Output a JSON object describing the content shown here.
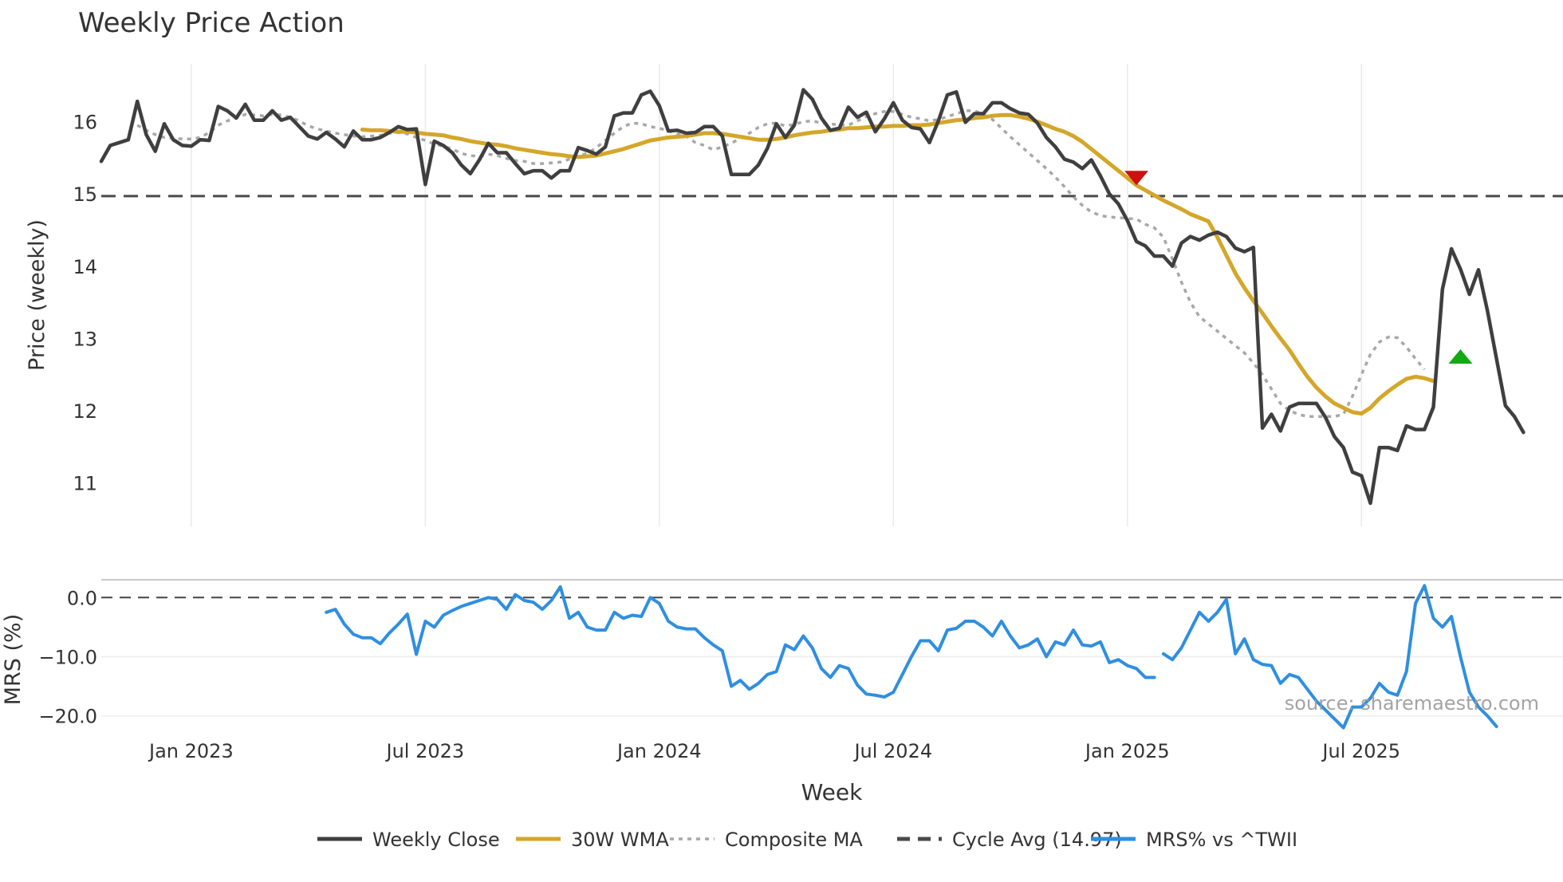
{
  "chart_data": [
    {
      "panel": "price",
      "type": "line",
      "title": "Weekly Price Action",
      "xlabel": "",
      "ylabel": "Price (weekly)",
      "ylim": [
        10.4,
        16.8
      ],
      "yticks": [
        11,
        12,
        13,
        14,
        15,
        16
      ],
      "x_start": "2022-10-24",
      "x_step_days": 7,
      "grid": "vertical",
      "series": [
        {
          "name": "Weekly Close",
          "color": "#3f3f3f",
          "style": "solid",
          "start_index": 0,
          "values": [
            15.45,
            15.67,
            15.71,
            15.75,
            16.28,
            15.82,
            15.59,
            15.97,
            15.75,
            15.67,
            15.66,
            15.75,
            15.74,
            16.21,
            16.15,
            16.05,
            16.24,
            16.02,
            16.02,
            16.15,
            16.02,
            16.06,
            15.93,
            15.8,
            15.76,
            15.85,
            15.76,
            15.65,
            15.87,
            15.75,
            15.75,
            15.78,
            15.85,
            15.93,
            15.89,
            15.9,
            15.13,
            15.73,
            15.67,
            15.57,
            15.4,
            15.28,
            15.47,
            15.7,
            15.57,
            15.57,
            15.42,
            15.28,
            15.32,
            15.32,
            15.22,
            15.32,
            15.32,
            15.64,
            15.6,
            15.55,
            15.65,
            16.08,
            16.12,
            16.12,
            16.37,
            16.42,
            16.22,
            15.87,
            15.88,
            15.84,
            15.85,
            15.93,
            15.93,
            15.8,
            15.27,
            15.27,
            15.27,
            15.4,
            15.63,
            15.97,
            15.78,
            15.95,
            16.44,
            16.31,
            16.05,
            15.88,
            15.91,
            16.2,
            16.06,
            16.13,
            15.86,
            16.04,
            16.26,
            16.02,
            15.92,
            15.9,
            15.71,
            16.01,
            16.37,
            16.41,
            15.99,
            16.11,
            16.11,
            16.26,
            16.26,
            16.18,
            16.12,
            16.1,
            15.98,
            15.78,
            15.65,
            15.48,
            15.44,
            15.35,
            15.47,
            15.25,
            15.0,
            14.86,
            14.63,
            14.34,
            14.28,
            14.14,
            14.14,
            14.0,
            14.32,
            14.41,
            14.36,
            14.43,
            14.47,
            14.41,
            14.25,
            14.2,
            14.26,
            11.76,
            11.95,
            11.72,
            12.05,
            12.1,
            12.1,
            12.1,
            11.91,
            11.64,
            11.49,
            11.15,
            11.1,
            10.72,
            11.49,
            11.49,
            11.45,
            11.79,
            11.74,
            11.74,
            12.05,
            13.68,
            14.24,
            13.96,
            13.61,
            13.95,
            13.38,
            12.72,
            12.07,
            11.92,
            11.7
          ]
        },
        {
          "name": "30W WMA",
          "color": "#d4a62a",
          "style": "solid",
          "start_index": 29,
          "values": [
            15.89,
            15.88,
            15.88,
            15.87,
            15.86,
            15.86,
            15.85,
            15.83,
            15.82,
            15.81,
            15.78,
            15.76,
            15.73,
            15.71,
            15.69,
            15.68,
            15.66,
            15.63,
            15.61,
            15.59,
            15.57,
            15.55,
            15.54,
            15.52,
            15.51,
            15.52,
            15.53,
            15.56,
            15.59,
            15.62,
            15.66,
            15.7,
            15.74,
            15.76,
            15.78,
            15.79,
            15.8,
            15.82,
            15.84,
            15.84,
            15.83,
            15.81,
            15.79,
            15.77,
            15.75,
            15.75,
            15.76,
            15.78,
            15.81,
            15.83,
            15.85,
            15.86,
            15.88,
            15.89,
            15.91,
            15.91,
            15.92,
            15.93,
            15.93,
            15.94,
            15.94,
            15.95,
            15.95,
            15.96,
            15.98,
            16.0,
            16.02,
            16.03,
            16.05,
            16.06,
            16.08,
            16.09,
            16.09,
            16.07,
            16.04,
            16.0,
            15.95,
            15.9,
            15.86,
            15.8,
            15.72,
            15.62,
            15.52,
            15.42,
            15.32,
            15.22,
            15.12,
            15.05,
            14.98,
            14.91,
            14.85,
            14.79,
            14.72,
            14.67,
            14.62,
            14.4,
            14.15,
            13.9,
            13.7,
            13.52,
            13.35,
            13.17,
            13.0,
            12.84,
            12.65,
            12.47,
            12.32,
            12.2,
            12.1,
            12.04,
            11.98,
            11.96,
            12.04,
            12.17,
            12.27,
            12.36,
            12.44,
            12.47,
            12.45,
            12.41
          ]
        },
        {
          "name": "Composite MA",
          "color": "#a8a8a8",
          "style": "dotted",
          "start_index": 4,
          "values": [
            15.95,
            15.88,
            15.82,
            15.78,
            15.77,
            15.76,
            15.76,
            15.78,
            15.85,
            15.95,
            16.01,
            16.05,
            16.1,
            16.09,
            16.08,
            16.1,
            16.09,
            16.06,
            16.01,
            15.94,
            15.9,
            15.87,
            15.84,
            15.82,
            15.8,
            15.79,
            15.8,
            15.81,
            15.84,
            15.85,
            15.83,
            15.78,
            15.74,
            15.69,
            15.66,
            15.62,
            15.56,
            15.53,
            15.52,
            15.55,
            15.53,
            15.49,
            15.46,
            15.45,
            15.42,
            15.42,
            15.43,
            15.44,
            15.48,
            15.53,
            15.56,
            15.64,
            15.74,
            15.84,
            15.93,
            15.98,
            15.97,
            15.93,
            15.91,
            15.87,
            15.83,
            15.8,
            15.71,
            15.67,
            15.61,
            15.65,
            15.7,
            15.77,
            15.84,
            15.92,
            15.97,
            15.98,
            15.94,
            15.96,
            16.0,
            16.01,
            15.98,
            15.97,
            15.95,
            15.95,
            16.01,
            16.07,
            16.11,
            16.14,
            16.14,
            16.1,
            16.06,
            16.04,
            16.01,
            16.03,
            16.07,
            16.11,
            16.15,
            16.15,
            16.1,
            16.03,
            15.91,
            15.79,
            15.68,
            15.57,
            15.46,
            15.35,
            15.23,
            15.1,
            14.96,
            14.84,
            14.75,
            14.7,
            14.68,
            14.67,
            14.66,
            14.65,
            14.58,
            14.53,
            14.4,
            14.1,
            13.78,
            13.5,
            13.3,
            13.2,
            13.1,
            13.0,
            12.9,
            12.8,
            12.66,
            12.5,
            12.3,
            12.1,
            12.0,
            11.95,
            11.92,
            11.92,
            11.92,
            11.92,
            11.95,
            12.2,
            12.5,
            12.78,
            12.95,
            13.02,
            13.01,
            12.88,
            12.72,
            12.57
          ]
        },
        {
          "name": "Cycle Avg (14.97)",
          "color": "#4a4a4a",
          "style": "dashed",
          "constant": 14.97
        }
      ],
      "markers": [
        {
          "name": "sell-signal",
          "shape": "triangle-down",
          "color": "#cc1111",
          "week_index": 115,
          "value": 15.22
        },
        {
          "name": "buy-signal",
          "shape": "triangle-up",
          "color": "#11aa11",
          "week_index": 151,
          "value": 12.75
        }
      ]
    },
    {
      "panel": "mrs",
      "type": "line",
      "xlabel": "Week",
      "ylabel": "MRS (%)",
      "ylim": [
        -23,
        3
      ],
      "yticks": [
        0,
        -10,
        -20
      ],
      "ytick_labels": [
        "0.0",
        "−10.0",
        "−20.0"
      ],
      "reference_line": 0,
      "x_start": "2022-10-24",
      "x_step_days": 7,
      "series": [
        {
          "name": "MRS% vs ^TWII",
          "color": "#2f8fe0",
          "style": "solid",
          "start_index": 25,
          "gap_after": 117,
          "values": [
            -2.5,
            -2.0,
            -4.5,
            -6.2,
            -6.8,
            -6.8,
            -7.8,
            -6.0,
            -4.5,
            -2.8,
            -9.6,
            -4.0,
            -5.0,
            -3.0,
            -2.2,
            -1.5,
            -1.0,
            -0.5,
            0.0,
            -0.3,
            -2.0,
            0.5,
            -0.5,
            -0.8,
            -2.0,
            -0.5,
            1.8,
            -3.5,
            -2.5,
            -5.0,
            -5.5,
            -5.5,
            -2.5,
            -3.5,
            -3.0,
            -3.2,
            0.0,
            -1.0,
            -4.0,
            -5.0,
            -5.3,
            -5.3,
            -6.8,
            -8.0,
            -9.0,
            -15.0,
            -14.0,
            -15.5,
            -14.5,
            -13.0,
            -12.5,
            -8.0,
            -8.8,
            -6.5,
            -8.5,
            -12.0,
            -13.5,
            -11.5,
            -12.0,
            -14.8,
            -16.3,
            -16.5,
            -16.8,
            -16.0,
            -13.0,
            -10.0,
            -7.3,
            -7.3,
            -9.0,
            -5.5,
            -5.2,
            -4.0,
            -4.0,
            -5.0,
            -6.5,
            -4.0,
            -6.5,
            -8.5,
            -8.0,
            -7.0,
            -10.0,
            -7.5,
            -8.0,
            -5.5,
            -8.0,
            -8.2,
            -7.5,
            -11.0,
            -10.5,
            -11.5,
            -12.0,
            -13.5,
            -13.5,
            -9.5,
            -10.5,
            -8.5,
            -5.5,
            -2.5,
            -4.0,
            -2.5,
            -0.3,
            -9.5,
            -7.0,
            -10.5,
            -11.3,
            -11.5,
            -14.5,
            -13.0,
            -13.5,
            -15.5,
            -17.5,
            -19.0,
            -20.5,
            -22.0,
            -18.5,
            -18.5,
            -17.0,
            -14.5,
            -16.0,
            -16.5,
            -12.5,
            -1.0,
            2.0,
            -3.5,
            -5.0,
            -3.2,
            -10.0,
            -16.0,
            -18.5,
            -20.0,
            -21.8
          ]
        }
      ]
    }
  ],
  "x_axis": {
    "tick_labels": [
      "Jan 2023",
      "Jul 2023",
      "Jan 2024",
      "Jul 2024",
      "Jan 2025",
      "Jul 2025"
    ],
    "tick_week_index": [
      10,
      36,
      62,
      88,
      114,
      140
    ]
  },
  "legend": {
    "placement": "bottom-center",
    "items": [
      {
        "label": "Weekly Close",
        "color": "#3f3f3f",
        "style": "solid"
      },
      {
        "label": "30W WMA",
        "color": "#d4a62a",
        "style": "solid"
      },
      {
        "label": "Composite MA",
        "color": "#a8a8a8",
        "style": "dotted"
      },
      {
        "label": "Cycle Avg (14.97)",
        "color": "#4a4a4a",
        "style": "dashed"
      },
      {
        "label": "MRS% vs ^TWII",
        "color": "#2f8fe0",
        "style": "solid"
      }
    ]
  },
  "watermark": "source: sharemaestro.com"
}
